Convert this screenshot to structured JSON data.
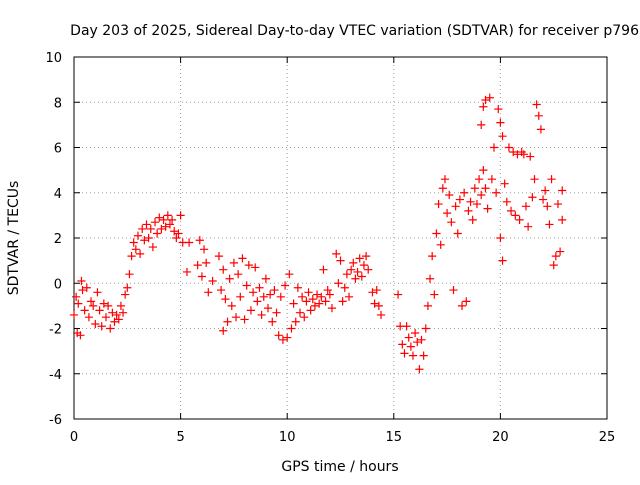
{
  "chart_data": {
    "type": "scatter",
    "title": "Day 203 of 2025, Sidereal Day-to-day VTEC variation (SDTVAR) for receiver p796",
    "xlabel": "GPS time / hours",
    "ylabel": "SDTVAR / TECUs",
    "xlim": [
      0,
      25
    ],
    "ylim": [
      -6,
      10
    ],
    "x_ticks": [
      0,
      5,
      10,
      15,
      20,
      25
    ],
    "y_ticks": [
      -6,
      -4,
      -2,
      0,
      2,
      4,
      6,
      8,
      10
    ],
    "x_tick_labels": [
      "0",
      "5",
      "10",
      "15",
      "20",
      "25"
    ],
    "y_tick_labels": [
      "-6",
      "-4",
      "-2",
      "0",
      "2",
      "4",
      "6",
      "8",
      "10"
    ],
    "grid": true,
    "marker": "+",
    "color": "#ff0000",
    "series": [
      {
        "name": "SDTVAR",
        "points": [
          [
            0.0,
            -1.4
          ],
          [
            0.1,
            -0.6
          ],
          [
            0.15,
            -2.2
          ],
          [
            0.2,
            -0.9
          ],
          [
            0.3,
            -2.3
          ],
          [
            0.35,
            0.1
          ],
          [
            0.4,
            -0.3
          ],
          [
            0.5,
            -1.2
          ],
          [
            0.6,
            -0.2
          ],
          [
            0.7,
            -1.5
          ],
          [
            0.8,
            -0.8
          ],
          [
            0.9,
            -1.0
          ],
          [
            1.0,
            -1.8
          ],
          [
            1.1,
            -0.4
          ],
          [
            1.2,
            -1.2
          ],
          [
            1.3,
            -1.9
          ],
          [
            1.4,
            -0.9
          ],
          [
            1.5,
            -1.5
          ],
          [
            1.6,
            -1.0
          ],
          [
            1.7,
            -2.0
          ],
          [
            1.8,
            -1.3
          ],
          [
            1.9,
            -1.7
          ],
          [
            2.0,
            -1.4
          ],
          [
            2.1,
            -1.6
          ],
          [
            2.2,
            -1.0
          ],
          [
            2.3,
            -1.3
          ],
          [
            2.4,
            -0.5
          ],
          [
            2.5,
            -0.2
          ],
          [
            2.6,
            0.4
          ],
          [
            2.7,
            1.2
          ],
          [
            2.8,
            1.8
          ],
          [
            2.9,
            1.5
          ],
          [
            3.0,
            2.1
          ],
          [
            3.1,
            1.3
          ],
          [
            3.2,
            2.4
          ],
          [
            3.3,
            1.9
          ],
          [
            3.4,
            2.6
          ],
          [
            3.5,
            2.0
          ],
          [
            3.6,
            2.4
          ],
          [
            3.7,
            1.6
          ],
          [
            3.8,
            2.7
          ],
          [
            3.9,
            2.2
          ],
          [
            4.0,
            2.9
          ],
          [
            4.1,
            2.4
          ],
          [
            4.2,
            2.8
          ],
          [
            4.3,
            2.5
          ],
          [
            4.4,
            3.0
          ],
          [
            4.5,
            2.6
          ],
          [
            4.6,
            2.8
          ],
          [
            4.7,
            2.3
          ],
          [
            4.8,
            2.0
          ],
          [
            4.9,
            2.2
          ],
          [
            5.0,
            3.0
          ],
          [
            5.1,
            1.8
          ],
          [
            5.3,
            0.5
          ],
          [
            5.4,
            1.8
          ],
          [
            5.8,
            0.8
          ],
          [
            5.9,
            1.9
          ],
          [
            6.0,
            0.3
          ],
          [
            6.1,
            1.5
          ],
          [
            6.2,
            0.9
          ],
          [
            6.3,
            -0.4
          ],
          [
            6.5,
            0.1
          ],
          [
            6.8,
            1.2
          ],
          [
            6.9,
            -0.3
          ],
          [
            7.0,
            0.6
          ],
          [
            7.0,
            -2.1
          ],
          [
            7.1,
            -0.7
          ],
          [
            7.2,
            -1.7
          ],
          [
            7.3,
            0.2
          ],
          [
            7.4,
            -1.0
          ],
          [
            7.5,
            0.9
          ],
          [
            7.6,
            -1.5
          ],
          [
            7.7,
            0.4
          ],
          [
            7.8,
            -0.6
          ],
          [
            7.9,
            1.1
          ],
          [
            8.0,
            -1.6
          ],
          [
            8.1,
            -0.1
          ],
          [
            8.2,
            0.8
          ],
          [
            8.3,
            -1.2
          ],
          [
            8.4,
            -0.4
          ],
          [
            8.5,
            0.7
          ],
          [
            8.6,
            -0.8
          ],
          [
            8.7,
            -0.2
          ],
          [
            8.8,
            -1.4
          ],
          [
            8.9,
            -0.6
          ],
          [
            9.0,
            0.2
          ],
          [
            9.1,
            -1.1
          ],
          [
            9.2,
            -0.5
          ],
          [
            9.3,
            -1.7
          ],
          [
            9.4,
            -0.3
          ],
          [
            9.5,
            -1.3
          ],
          [
            9.6,
            -2.3
          ],
          [
            9.7,
            -0.6
          ],
          [
            9.8,
            -2.5
          ],
          [
            9.9,
            -0.1
          ],
          [
            10.0,
            -2.4
          ],
          [
            10.1,
            0.4
          ],
          [
            10.2,
            -2.0
          ],
          [
            10.3,
            -0.9
          ],
          [
            10.4,
            -1.7
          ],
          [
            10.5,
            -0.2
          ],
          [
            10.6,
            -1.3
          ],
          [
            10.7,
            -0.6
          ],
          [
            10.8,
            -1.5
          ],
          [
            10.9,
            -0.8
          ],
          [
            11.0,
            -0.4
          ],
          [
            11.1,
            -1.2
          ],
          [
            11.2,
            -0.7
          ],
          [
            11.3,
            -1.0
          ],
          [
            11.4,
            -0.5
          ],
          [
            11.5,
            -0.9
          ],
          [
            11.6,
            -0.6
          ],
          [
            11.7,
            0.6
          ],
          [
            11.8,
            -0.8
          ],
          [
            11.9,
            -0.3
          ],
          [
            12.0,
            -0.5
          ],
          [
            12.1,
            -1.1
          ],
          [
            12.3,
            1.3
          ],
          [
            12.4,
            0.0
          ],
          [
            12.5,
            1.0
          ],
          [
            12.6,
            -0.8
          ],
          [
            12.7,
            -0.2
          ],
          [
            12.8,
            0.4
          ],
          [
            12.9,
            -0.6
          ],
          [
            13.0,
            0.6
          ],
          [
            13.1,
            0.9
          ],
          [
            13.2,
            0.2
          ],
          [
            13.3,
            0.5
          ],
          [
            13.4,
            1.1
          ],
          [
            13.5,
            0.3
          ],
          [
            13.6,
            0.8
          ],
          [
            13.7,
            1.2
          ],
          [
            13.8,
            0.6
          ],
          [
            14.0,
            -0.4
          ],
          [
            14.1,
            -0.9
          ],
          [
            14.2,
            -0.3
          ],
          [
            14.3,
            -1.0
          ],
          [
            14.4,
            -1.4
          ],
          [
            15.2,
            -0.5
          ],
          [
            15.3,
            -1.9
          ],
          [
            15.4,
            -2.7
          ],
          [
            15.5,
            -3.1
          ],
          [
            15.6,
            -1.9
          ],
          [
            15.7,
            -2.4
          ],
          [
            15.8,
            -2.8
          ],
          [
            15.9,
            -3.2
          ],
          [
            16.0,
            -2.2
          ],
          [
            16.1,
            -2.6
          ],
          [
            16.2,
            -3.8
          ],
          [
            16.3,
            -2.5
          ],
          [
            16.4,
            -3.2
          ],
          [
            16.5,
            -2.0
          ],
          [
            16.6,
            -1.0
          ],
          [
            16.7,
            0.2
          ],
          [
            16.8,
            1.2
          ],
          [
            16.9,
            -0.5
          ],
          [
            17.0,
            2.2
          ],
          [
            17.1,
            3.5
          ],
          [
            17.2,
            1.7
          ],
          [
            17.3,
            4.2
          ],
          [
            17.4,
            4.6
          ],
          [
            17.5,
            3.1
          ],
          [
            17.6,
            3.9
          ],
          [
            17.7,
            2.7
          ],
          [
            17.8,
            -0.3
          ],
          [
            17.9,
            3.4
          ],
          [
            18.0,
            2.2
          ],
          [
            18.1,
            3.7
          ],
          [
            18.2,
            -1.0
          ],
          [
            18.3,
            4.0
          ],
          [
            18.4,
            -0.8
          ],
          [
            18.5,
            3.2
          ],
          [
            18.6,
            3.6
          ],
          [
            18.7,
            2.8
          ],
          [
            18.8,
            4.2
          ],
          [
            18.9,
            3.5
          ],
          [
            19.0,
            4.6
          ],
          [
            19.1,
            3.9
          ],
          [
            19.1,
            7.0
          ],
          [
            19.2,
            5.0
          ],
          [
            19.2,
            7.8
          ],
          [
            19.3,
            4.2
          ],
          [
            19.3,
            8.1
          ],
          [
            19.4,
            3.3
          ],
          [
            19.5,
            8.2
          ],
          [
            19.6,
            4.6
          ],
          [
            19.7,
            6.0
          ],
          [
            19.8,
            4.0
          ],
          [
            19.9,
            7.7
          ],
          [
            20.0,
            2.0
          ],
          [
            20.0,
            7.1
          ],
          [
            20.1,
            1.0
          ],
          [
            20.1,
            6.5
          ],
          [
            20.2,
            4.4
          ],
          [
            20.3,
            3.6
          ],
          [
            20.4,
            6.0
          ],
          [
            20.5,
            3.2
          ],
          [
            20.6,
            5.8
          ],
          [
            20.7,
            3.0
          ],
          [
            20.8,
            5.7
          ],
          [
            20.9,
            2.8
          ],
          [
            21.0,
            5.8
          ],
          [
            21.1,
            5.7
          ],
          [
            21.2,
            3.4
          ],
          [
            21.3,
            2.5
          ],
          [
            21.4,
            5.6
          ],
          [
            21.5,
            3.8
          ],
          [
            21.6,
            4.6
          ],
          [
            21.7,
            7.9
          ],
          [
            21.8,
            7.4
          ],
          [
            21.9,
            6.8
          ],
          [
            22.0,
            3.7
          ],
          [
            22.1,
            4.1
          ],
          [
            22.2,
            3.4
          ],
          [
            22.3,
            2.6
          ],
          [
            22.4,
            4.6
          ],
          [
            22.5,
            0.8
          ],
          [
            22.6,
            1.2
          ],
          [
            22.7,
            3.5
          ],
          [
            22.8,
            1.4
          ],
          [
            22.9,
            4.1
          ],
          [
            22.9,
            2.8
          ]
        ]
      }
    ]
  }
}
